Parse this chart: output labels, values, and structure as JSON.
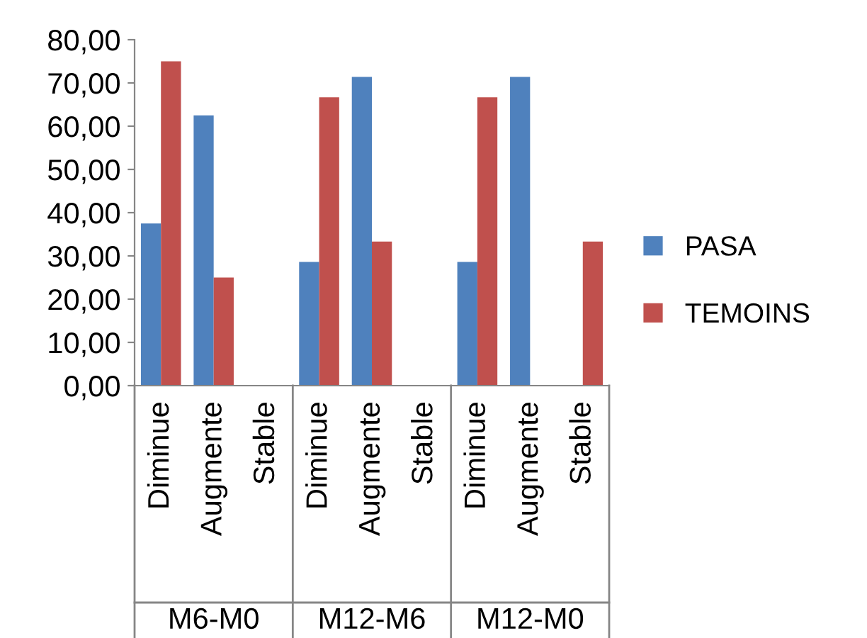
{
  "chart_data": {
    "type": "bar",
    "categories": [
      "Diminue",
      "Augmente",
      "Stable",
      "Diminue",
      "Augmente",
      "Stable",
      "Diminue",
      "Augmente",
      "Stable"
    ],
    "series": [
      {
        "name": "PASA",
        "color": "#4f81bd",
        "values": [
          37.5,
          62.5,
          0,
          28.6,
          71.4,
          0,
          28.6,
          71.4,
          0
        ]
      },
      {
        "name": "TEMOINS",
        "color": "#c0504d",
        "values": [
          75,
          25,
          0,
          66.7,
          33.3,
          0,
          66.7,
          0,
          33.3
        ]
      }
    ],
    "annotations": [
      "M6-M0",
      "M12-M6",
      "M12-M0"
    ],
    "ylim": [
      0,
      80
    ],
    "yticks": [
      {
        "value": 0,
        "label": "0,00"
      },
      {
        "value": 10,
        "label": "10,00"
      },
      {
        "value": 20,
        "label": "20,00"
      },
      {
        "value": 30,
        "label": "30,00"
      },
      {
        "value": 40,
        "label": "40,00"
      },
      {
        "value": 50,
        "label": "50,00"
      },
      {
        "value": 60,
        "label": "60,00"
      },
      {
        "value": 70,
        "label": "70,00"
      },
      {
        "value": 80,
        "label": "80,00"
      }
    ],
    "grid": false,
    "legend": "right"
  }
}
